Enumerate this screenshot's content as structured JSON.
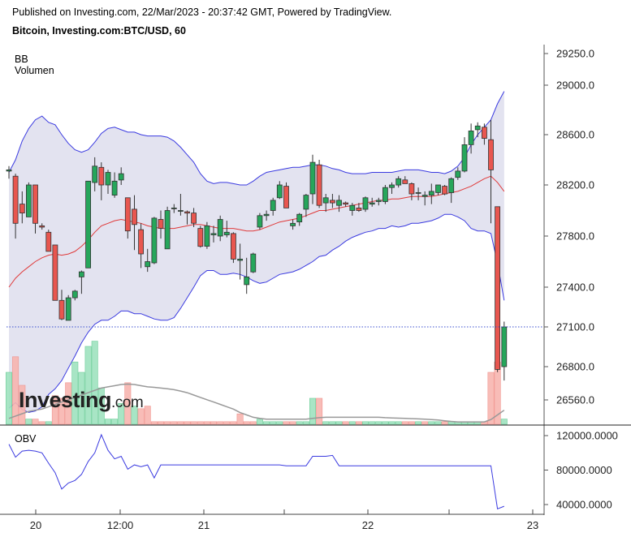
{
  "header": {
    "published": "Published on Investing.com, 22/Mar/2023 - 20:37:42 GMT, Powered by TradingView.",
    "symbol": "Bitcoin, Investing.com:BTC/USD, 60"
  },
  "logo": {
    "brand": "Investing",
    "suffix": ".com"
  },
  "indicators": {
    "bb": "BB",
    "volume": "Volumen",
    "obv": "OBV"
  },
  "colors": {
    "up": "#26a65b",
    "down": "#e8564f",
    "bb_band": "#3a3ae0",
    "bb_basis": "#e03a3a",
    "bb_fill": "#e3e3f0",
    "obv": "#3a3ae0",
    "vol_avg": "#999999",
    "last_price_line": "#3a4fcf"
  },
  "chart_data": {
    "type": "candlestick",
    "price_axis": {
      "ticks": [
        29250.0,
        29000.0,
        28600.0,
        28200.0,
        27800.0,
        27400.0,
        27100.0,
        26800.0,
        26560.0
      ],
      "labels": [
        "29250.0",
        "29000.0",
        "28600.0",
        "28200.0",
        "27800.0",
        "27400.0",
        "27100.0",
        "26800.0",
        "26560.0"
      ]
    },
    "obv_axis": {
      "ticks": [
        120000,
        80000,
        40000
      ],
      "labels": [
        "120000.0000",
        "80000.0000",
        "40000.0000"
      ]
    },
    "x_labels": [
      "20",
      "12:00",
      "21",
      "22",
      "23"
    ],
    "last_price": 27100.0,
    "candles": [
      [
        28310,
        28350,
        28250,
        28320
      ],
      [
        28270,
        28290,
        27780,
        27900
      ],
      [
        28050,
        28150,
        27900,
        27980
      ],
      [
        27950,
        28220,
        27950,
        28200
      ],
      [
        28200,
        28200,
        27820,
        27900
      ],
      [
        27880,
        27900,
        27850,
        27870
      ],
      [
        27830,
        27850,
        27680,
        27680
      ],
      [
        27730,
        27730,
        27300,
        27300
      ],
      [
        27300,
        27380,
        27150,
        27160
      ],
      [
        27150,
        27340,
        27150,
        27320
      ],
      [
        27320,
        27380,
        27300,
        27370
      ],
      [
        27480,
        27530,
        27350,
        27520
      ],
      [
        27550,
        28230,
        27550,
        28230
      ],
      [
        28220,
        28420,
        28150,
        28350
      ],
      [
        28340,
        28380,
        28080,
        28200
      ],
      [
        28200,
        28320,
        28130,
        28300
      ],
      [
        28120,
        28300,
        28100,
        28230
      ],
      [
        28240,
        28340,
        28200,
        28290
      ],
      [
        28100,
        28100,
        27780,
        27840
      ],
      [
        28010,
        28120,
        27690,
        27890
      ],
      [
        27850,
        27900,
        27550,
        27660
      ],
      [
        27560,
        27700,
        27520,
        27600
      ],
      [
        27590,
        27950,
        27580,
        27940
      ],
      [
        27930,
        28000,
        27780,
        27860
      ],
      [
        27700,
        28030,
        27700,
        28000
      ],
      [
        28020,
        28050,
        27980,
        28020
      ],
      [
        28000,
        28130,
        27960,
        28000
      ],
      [
        27990,
        28000,
        27890,
        27980
      ],
      [
        27980,
        28020,
        27870,
        27900
      ],
      [
        27860,
        27880,
        27710,
        27720
      ],
      [
        27720,
        27910,
        27700,
        27880
      ],
      [
        27810,
        27880,
        27750,
        27820
      ],
      [
        27800,
        27960,
        27760,
        27930
      ],
      [
        27810,
        27920,
        27790,
        27830
      ],
      [
        27820,
        27830,
        27590,
        27620
      ],
      [
        27610,
        27740,
        27460,
        27620
      ],
      [
        27420,
        27630,
        27350,
        27480
      ],
      [
        27520,
        27670,
        27510,
        27660
      ],
      [
        27870,
        27980,
        27850,
        27960
      ],
      [
        27960,
        28000,
        27920,
        27970
      ],
      [
        28000,
        28100,
        27960,
        28080
      ],
      [
        28100,
        28230,
        28090,
        28200
      ],
      [
        28190,
        28220,
        28020,
        28020
      ],
      [
        27880,
        27930,
        27850,
        27900
      ],
      [
        27910,
        27980,
        27880,
        27970
      ],
      [
        28010,
        28130,
        27950,
        28120
      ],
      [
        28130,
        28440,
        28050,
        28380
      ],
      [
        28360,
        28400,
        28020,
        28040
      ],
      [
        28060,
        28130,
        27990,
        28100
      ],
      [
        28080,
        28130,
        28020,
        28060
      ],
      [
        28040,
        28120,
        27990,
        28080
      ],
      [
        28060,
        28070,
        28030,
        28050
      ],
      [
        28000,
        28060,
        27960,
        28040
      ],
      [
        28020,
        28060,
        27990,
        28000
      ],
      [
        28010,
        28110,
        27990,
        28100
      ],
      [
        28050,
        28100,
        28030,
        28060
      ],
      [
        28070,
        28100,
        28040,
        28080
      ],
      [
        28070,
        28200,
        28050,
        28180
      ],
      [
        28180,
        28220,
        28130,
        28200
      ],
      [
        28200,
        28270,
        28180,
        28250
      ],
      [
        28240,
        28270,
        28210,
        28210
      ],
      [
        28210,
        28220,
        28080,
        28130
      ],
      [
        28140,
        28180,
        28080,
        28140
      ],
      [
        28110,
        28150,
        28040,
        28120
      ],
      [
        28120,
        28210,
        28050,
        28150
      ],
      [
        28140,
        28200,
        28120,
        28200
      ],
      [
        28190,
        28200,
        28120,
        28130
      ],
      [
        28140,
        28260,
        28060,
        28250
      ],
      [
        28260,
        28340,
        28240,
        28310
      ],
      [
        28310,
        28580,
        28300,
        28520
      ],
      [
        28520,
        28690,
        28450,
        28630
      ],
      [
        28640,
        28700,
        28580,
        28670
      ],
      [
        28660,
        28690,
        28520,
        28570
      ],
      [
        28560,
        28720,
        27900,
        28320
      ],
      [
        28030,
        28030,
        26760,
        26780
      ],
      [
        26800,
        27140,
        26700,
        27100
      ]
    ],
    "volume": [
      [
        2.0,
        1
      ],
      [
        2.6,
        0
      ],
      [
        1.5,
        0
      ],
      [
        0.2,
        1
      ],
      [
        0.2,
        0
      ],
      [
        0.1,
        0
      ],
      [
        0.1,
        1
      ],
      [
        1.1,
        0
      ],
      [
        1.0,
        0
      ],
      [
        1.6,
        0
      ],
      [
        2.4,
        1
      ],
      [
        2.0,
        1
      ],
      [
        3.0,
        1
      ],
      [
        3.2,
        1
      ],
      [
        1.4,
        1
      ],
      [
        0.2,
        1
      ],
      [
        0.2,
        1
      ],
      [
        0.8,
        1
      ],
      [
        1.6,
        0
      ],
      [
        0.7,
        1
      ],
      [
        0.6,
        0
      ],
      [
        0.7,
        0
      ],
      [
        0.1,
        0
      ],
      [
        0.1,
        0
      ],
      [
        0.1,
        0
      ],
      [
        0.1,
        0
      ],
      [
        0.1,
        0
      ],
      [
        0.1,
        0
      ],
      [
        0.1,
        0
      ],
      [
        0.1,
        0
      ],
      [
        0.1,
        0
      ],
      [
        0.1,
        0
      ],
      [
        0.1,
        0
      ],
      [
        0.1,
        0
      ],
      [
        0.1,
        0
      ],
      [
        0.4,
        0
      ],
      [
        0.1,
        0
      ],
      [
        0.1,
        0
      ],
      [
        0.2,
        1
      ],
      [
        0.1,
        1
      ],
      [
        0.1,
        1
      ],
      [
        0.1,
        1
      ],
      [
        0.1,
        0
      ],
      [
        0.1,
        0
      ],
      [
        0.1,
        1
      ],
      [
        0.1,
        1
      ],
      [
        1.0,
        1
      ],
      [
        1.0,
        0
      ],
      [
        0.1,
        1
      ],
      [
        0.1,
        1
      ],
      [
        0.1,
        1
      ],
      [
        0.1,
        0
      ],
      [
        0.1,
        1
      ],
      [
        0.1,
        0
      ],
      [
        0.1,
        1
      ],
      [
        0.1,
        1
      ],
      [
        0.1,
        1
      ],
      [
        0.1,
        1
      ],
      [
        0.1,
        1
      ],
      [
        0.1,
        1
      ],
      [
        0.1,
        0
      ],
      [
        0.1,
        0
      ],
      [
        0.1,
        1
      ],
      [
        0.1,
        0
      ],
      [
        0.1,
        1
      ],
      [
        0.1,
        1
      ],
      [
        0.1,
        0
      ],
      [
        0.1,
        1
      ],
      [
        0.1,
        1
      ],
      [
        0.1,
        1
      ],
      [
        0.1,
        1
      ],
      [
        0.1,
        1
      ],
      [
        0.1,
        0
      ],
      [
        2.0,
        0
      ],
      [
        2.4,
        0
      ],
      [
        0.2,
        1
      ]
    ],
    "bb_upper": [
      28300,
      28400,
      28550,
      28650,
      28720,
      28750,
      28700,
      28680,
      28600,
      28530,
      28480,
      28460,
      28480,
      28540,
      28610,
      28650,
      28660,
      28640,
      28620,
      28620,
      28600,
      28590,
      28590,
      28590,
      28580,
      28550,
      28500,
      28440,
      28380,
      28290,
      28230,
      28210,
      28220,
      28220,
      28210,
      28200,
      28200,
      28230,
      28270,
      28300,
      28310,
      28320,
      28330,
      28340,
      28340,
      28350,
      28360,
      28360,
      28350,
      28330,
      28320,
      28300,
      28290,
      28290,
      28290,
      28300,
      28300,
      28300,
      28300,
      28310,
      28320,
      28320,
      28320,
      28310,
      28300,
      28300,
      28290,
      28310,
      28350,
      28420,
      28520,
      28600,
      28660,
      28720,
      28850,
      28950
    ],
    "bb_basis": [
      27400,
      27470,
      27520,
      27560,
      27600,
      27630,
      27650,
      27660,
      27650,
      27660,
      27680,
      27720,
      27770,
      27830,
      27880,
      27900,
      27920,
      27930,
      27920,
      27910,
      27900,
      27880,
      27870,
      27860,
      27860,
      27860,
      27870,
      27880,
      27890,
      27890,
      27880,
      27870,
      27860,
      27860,
      27860,
      27850,
      27840,
      27840,
      27850,
      27870,
      27890,
      27910,
      27920,
      27930,
      27940,
      27960,
      27980,
      28000,
      28000,
      28010,
      28020,
      28030,
      28040,
      28050,
      28060,
      28070,
      28080,
      28080,
      28090,
      28090,
      28100,
      28110,
      28110,
      28110,
      28110,
      28120,
      28130,
      28140,
      28150,
      28170,
      28190,
      28220,
      28250,
      28270,
      28220,
      28150
    ],
    "bb_lower": [
      26500,
      26540,
      26490,
      26470,
      26480,
      26510,
      26600,
      26640,
      26700,
      26790,
      26880,
      26980,
      27060,
      27120,
      27150,
      27150,
      27180,
      27220,
      27220,
      27200,
      27200,
      27180,
      27160,
      27150,
      27150,
      27170,
      27240,
      27320,
      27400,
      27490,
      27530,
      27530,
      27500,
      27500,
      27510,
      27500,
      27480,
      27450,
      27430,
      27440,
      27470,
      27500,
      27510,
      27520,
      27540,
      27570,
      27600,
      27640,
      27650,
      27690,
      27720,
      27760,
      27790,
      27810,
      27830,
      27840,
      27860,
      27860,
      27880,
      27870,
      27880,
      27900,
      27900,
      27910,
      27920,
      27940,
      27970,
      27970,
      27950,
      27920,
      27860,
      27840,
      27840,
      27820,
      27590,
      27300
    ],
    "vol_avg": [
      0.25,
      0.35,
      0.45,
      0.55,
      0.6,
      0.65,
      0.75,
      0.85,
      0.95,
      1.05,
      1.15,
      1.25,
      1.35,
      1.45,
      1.55,
      1.6,
      1.65,
      1.7,
      1.72,
      1.7,
      1.65,
      1.6,
      1.58,
      1.55,
      1.52,
      1.48,
      1.42,
      1.35,
      1.25,
      1.15,
      1.05,
      0.95,
      0.85,
      0.75,
      0.65,
      0.5,
      0.4,
      0.3,
      0.25,
      0.22,
      0.22,
      0.22,
      0.22,
      0.22,
      0.22,
      0.22,
      0.25,
      0.28,
      0.3,
      0.3,
      0.3,
      0.3,
      0.3,
      0.3,
      0.3,
      0.3,
      0.3,
      0.28,
      0.27,
      0.26,
      0.25,
      0.24,
      0.23,
      0.22,
      0.2,
      0.18,
      0.15,
      0.12,
      0.1,
      0.1,
      0.1,
      0.1,
      0.1,
      0.2,
      0.4,
      0.6
    ],
    "obv": [
      110000,
      95000,
      102000,
      103000,
      102000,
      100000,
      88000,
      77000,
      58000,
      65000,
      68000,
      75000,
      90000,
      100000,
      121000,
      103000,
      93000,
      96000,
      81000,
      86000,
      84000,
      86000,
      71000,
      86000,
      86000,
      86000,
      86000,
      86000,
      86000,
      86000,
      86000,
      86000,
      86000,
      86000,
      86000,
      86000,
      86000,
      86000,
      86000,
      86000,
      86000,
      86000,
      85000,
      85000,
      85000,
      85000,
      96000,
      96000,
      96000,
      97000,
      85000,
      85000,
      85000,
      85000,
      85000,
      85000,
      85000,
      85000,
      85000,
      85000,
      85000,
      85000,
      85000,
      85000,
      85000,
      85000,
      85000,
      85000,
      85000,
      85000,
      85000,
      85000,
      85000,
      85000,
      35000,
      38000
    ]
  }
}
